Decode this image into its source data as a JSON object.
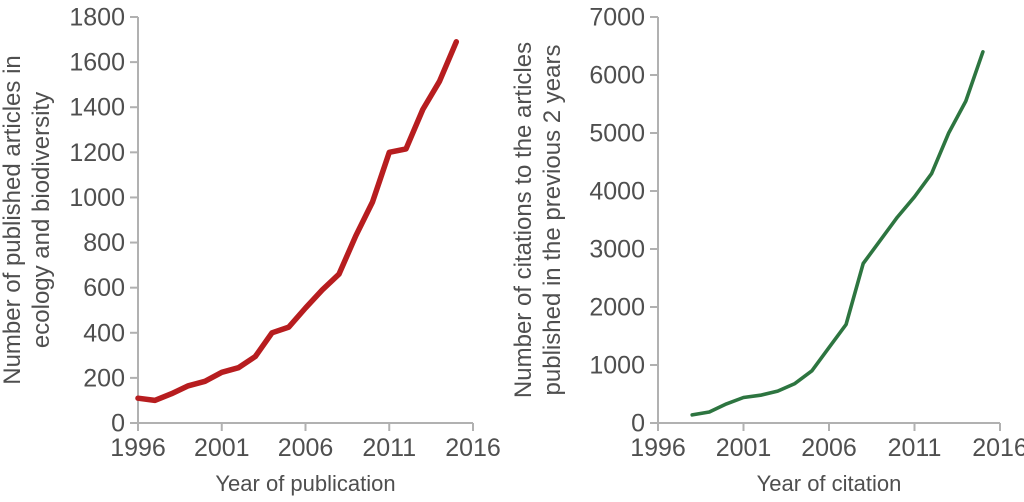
{
  "figure": {
    "background_color": "#ffffff",
    "axis_color": "#b1b1b1",
    "tick_label_color": "#4f4f4f",
    "axis_label_color": "#4f4f4f"
  },
  "chart_data": [
    {
      "type": "line",
      "series_name": "published-articles-in-ecology-and-biodiversity",
      "title": "",
      "xlabel": "Year of publication",
      "ylabel_line1": "Number of published articles in",
      "ylabel_line2": "ecology and biodiversity",
      "line_color": "#b71d1f",
      "line_width": 5.5,
      "xlim": [
        1996,
        2016
      ],
      "ylim": [
        0,
        1800
      ],
      "xticks": [
        1996,
        2001,
        2006,
        2011,
        2016
      ],
      "yticks": [
        0,
        200,
        400,
        600,
        800,
        1000,
        1200,
        1400,
        1600,
        1800
      ],
      "grid": false,
      "legend": null,
      "x": [
        1996,
        1997,
        1998,
        1999,
        2000,
        2001,
        2002,
        2003,
        2004,
        2005,
        2006,
        2007,
        2008,
        2009,
        2010,
        2011,
        2012,
        2013,
        2014,
        2015
      ],
      "y": [
        110,
        100,
        130,
        165,
        185,
        225,
        245,
        295,
        400,
        425,
        510,
        590,
        660,
        830,
        980,
        1200,
        1215,
        1390,
        1515,
        1690
      ]
    },
    {
      "type": "line",
      "series_name": "citations-to-articles-previous-2-years",
      "title": "",
      "xlabel": "Year of citation",
      "ylabel_line1": "Number of citations to the articles",
      "ylabel_line2": "published in the previous 2 years",
      "line_color": "#2d7540",
      "line_width": 3.6,
      "xlim": [
        1996,
        2016
      ],
      "ylim": [
        0,
        7000
      ],
      "xticks": [
        1996,
        2001,
        2006,
        2011,
        2016
      ],
      "yticks": [
        0,
        1000,
        2000,
        3000,
        4000,
        5000,
        6000,
        7000
      ],
      "grid": false,
      "legend": null,
      "x": [
        1998,
        1999,
        2000,
        2001,
        2002,
        2003,
        2004,
        2005,
        2006,
        2007,
        2008,
        2009,
        2010,
        2011,
        2012,
        2013,
        2014,
        2015
      ],
      "y": [
        140,
        190,
        330,
        440,
        480,
        550,
        680,
        900,
        1300,
        1700,
        2750,
        3150,
        3550,
        3900,
        4300,
        5000,
        5550,
        6400
      ]
    }
  ]
}
